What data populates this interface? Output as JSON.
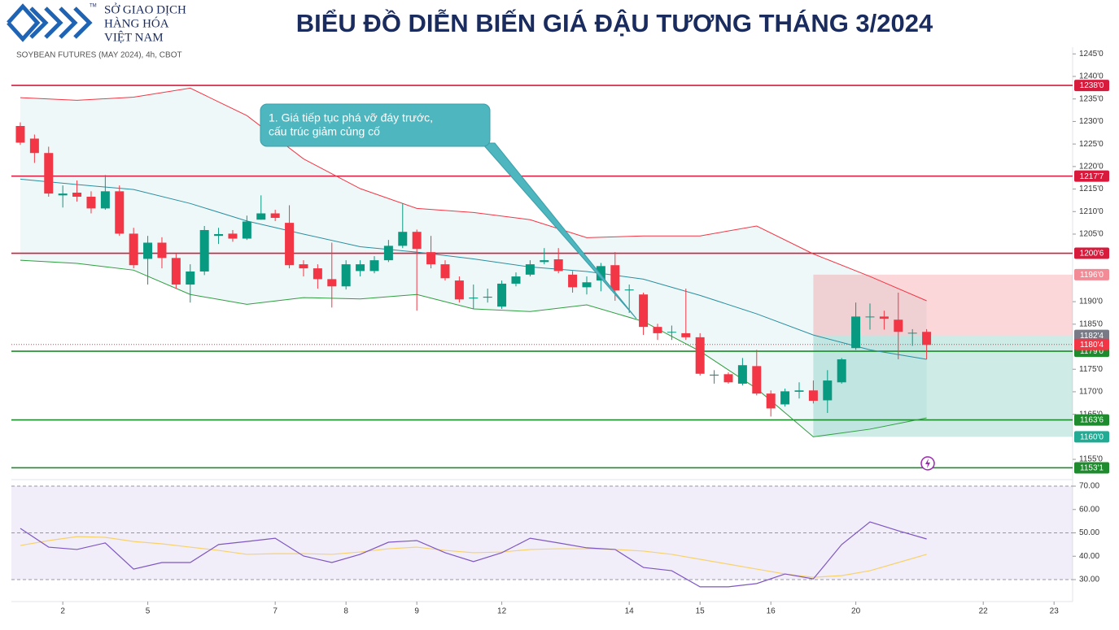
{
  "header": {
    "logo_lines": [
      "SỞ GIAO DỊCH",
      "HÀNG HÓA",
      "VIỆT NAM"
    ],
    "trademark": "TM",
    "title": "BIỂU ĐỒ DIỄN BIẾN GIÁ ĐẬU TƯƠNG THÁNG 3/2024"
  },
  "chart_data": [
    {
      "type": "candlestick",
      "title": "SOYBEAN FUTURES (MAY 2024), 4h, CBOT",
      "x": [
        0,
        1,
        2,
        3,
        4,
        5,
        6,
        7,
        8,
        9,
        10,
        11,
        12,
        13,
        14,
        15,
        16,
        17,
        18,
        19,
        20,
        21,
        22,
        23,
        24,
        25,
        26,
        27,
        28,
        29,
        30,
        31,
        32,
        33,
        34,
        35,
        36,
        37,
        38,
        39,
        40,
        41,
        42,
        43,
        44,
        45,
        46,
        47,
        48,
        49,
        50,
        51,
        52,
        53,
        54,
        55,
        56,
        57,
        58,
        59,
        60,
        61,
        62,
        63,
        64
      ],
      "open": [
        1229,
        1226.2,
        1223,
        1213.6,
        1214.2,
        1213.3,
        1210.7,
        1214.5,
        1205.1,
        1199.5,
        1203.1,
        1199.7,
        1193.8,
        1196.7,
        1204.6,
        1205.1,
        1204,
        1208.2,
        1209.6,
        1207.5,
        1198.3,
        1197.4,
        1195,
        1193.4,
        1196.8,
        1196.8,
        1199.2,
        1202.4,
        1205.5,
        1201,
        1198.3,
        1194.7,
        1190.7,
        1190.9,
        1188.9,
        1194,
        1196,
        1198.8,
        1199.4,
        1196,
        1193.2,
        1194.7,
        1198.1,
        1192.5,
        1191.6,
        1184.4,
        1183.3,
        1183,
        1182.1,
        1173.6,
        1173.9,
        1171.8,
        1175.7,
        1169.6,
        1167.2,
        1170,
        1170.3,
        1168.1,
        1172.1,
        1179.7,
        1186.6,
        1186.7,
        1186,
        1183,
        1183.3
      ],
      "high": [
        1229.8,
        1227.1,
        1224.4,
        1215.8,
        1216.9,
        1214.5,
        1218.1,
        1215.8,
        1206.4,
        1204.6,
        1204.3,
        1200.6,
        1198.3,
        1206.8,
        1206.4,
        1205.9,
        1209.1,
        1213.6,
        1210.4,
        1211.4,
        1199.2,
        1198.3,
        1203.1,
        1199.2,
        1199.2,
        1200.1,
        1203.7,
        1211.8,
        1206,
        1204.6,
        1199.2,
        1195.6,
        1193.8,
        1192.9,
        1194.7,
        1196.5,
        1199.2,
        1201.9,
        1201.9,
        1196.8,
        1195.6,
        1198.6,
        1201,
        1193.8,
        1192,
        1185.1,
        1184.7,
        1192.9,
        1183,
        1174.8,
        1174.3,
        1177.5,
        1179.3,
        1170.3,
        1170.7,
        1172.1,
        1172.5,
        1174.8,
        1177.5,
        1189.8,
        1189.6,
        1188,
        1192,
        1183.9,
        1183.9
      ],
      "low": [
        1224.8,
        1220.8,
        1213.3,
        1210.9,
        1212.2,
        1209.6,
        1210.4,
        1204.6,
        1197.4,
        1193.8,
        1197.4,
        1192.9,
        1189.8,
        1195.9,
        1202.8,
        1203.3,
        1203.7,
        1208.2,
        1207.9,
        1197.4,
        1195.6,
        1192.9,
        1188.7,
        1192.7,
        1195.6,
        1196.3,
        1198.8,
        1201.9,
        1188,
        1197.4,
        1194.7,
        1189.8,
        1188.4,
        1189.8,
        1188.4,
        1193.4,
        1195.6,
        1198.3,
        1196.3,
        1192,
        1191.6,
        1192.3,
        1190.2,
        1187.5,
        1182.6,
        1181.5,
        1181.5,
        1181.5,
        1173.6,
        1171.8,
        1171.8,
        1171.4,
        1169.2,
        1164.5,
        1166.7,
        1168.5,
        1167.4,
        1165.3,
        1171.8,
        1179.3,
        1183.8,
        1183.8,
        1177.2,
        1180.2,
        1177.2
      ],
      "close": [
        1225.3,
        1223,
        1214,
        1214,
        1213.3,
        1210.7,
        1214.5,
        1205.1,
        1198.1,
        1203.1,
        1199.7,
        1193.8,
        1196.7,
        1205.9,
        1205,
        1204,
        1207.8,
        1209.6,
        1208.6,
        1198.1,
        1197.4,
        1195,
        1193.4,
        1198.3,
        1198.3,
        1199.2,
        1202.4,
        1205.5,
        1201.7,
        1198.3,
        1195.2,
        1190.5,
        1190.9,
        1191.1,
        1194,
        1195.6,
        1198.3,
        1199.2,
        1196.8,
        1193.2,
        1194.3,
        1197.9,
        1192.5,
        1192.7,
        1184.4,
        1183,
        1183.3,
        1182.1,
        1174,
        1173.8,
        1172.1,
        1175.9,
        1169.6,
        1166.3,
        1170.1,
        1170.3,
        1168,
        1172.5,
        1177.2,
        1186.7,
        1186.7,
        1186.2,
        1183.3,
        1183.1,
        1180.4
      ],
      "up_color": "#089981",
      "down_color": "#f23645",
      "xlim": [
        -0.63,
        74.31
      ],
      "xticks": [
        {
          "value": 3,
          "label": "2"
        },
        {
          "value": 9,
          "label": "5"
        },
        {
          "value": 18,
          "label": "7"
        },
        {
          "value": 23,
          "label": "8"
        },
        {
          "value": 28,
          "label": "9"
        },
        {
          "value": 34,
          "label": "12"
        },
        {
          "value": 43,
          "label": "14"
        },
        {
          "value": 48,
          "label": "15"
        },
        {
          "value": 53,
          "label": "16"
        },
        {
          "value": 59,
          "label": "20"
        },
        {
          "value": 68,
          "label": "22"
        },
        {
          "value": 73,
          "label": "23"
        }
      ],
      "ylim": [
        1150.5,
        1246.5
      ],
      "yticks": [
        {
          "value": 1245,
          "label": "1245'0"
        },
        {
          "value": 1240,
          "label": "1240'0"
        },
        {
          "value": 1235,
          "label": "1235'0"
        },
        {
          "value": 1230,
          "label": "1230'0"
        },
        {
          "value": 1225,
          "label": "1225'0"
        },
        {
          "value": 1220,
          "label": "1220'0"
        },
        {
          "value": 1215,
          "label": "1215'0"
        },
        {
          "value": 1210,
          "label": "1210'0"
        },
        {
          "value": 1205,
          "label": "1205'0"
        },
        {
          "value": 1190,
          "label": "1190'0"
        },
        {
          "value": 1185,
          "label": "1185'0"
        },
        {
          "value": 1175,
          "label": "1175'0"
        },
        {
          "value": 1170,
          "label": "1170'0"
        },
        {
          "value": 1165,
          "label": "1165'0"
        },
        {
          "value": 1155,
          "label": "1155'0"
        }
      ],
      "band_x": [
        0,
        4,
        8,
        12,
        16,
        20,
        24,
        28,
        32,
        36,
        40,
        44,
        48,
        52,
        56,
        60,
        64
      ],
      "bands": [
        {
          "color": "#f23645",
          "values": [
            1235.3,
            1234.7,
            1235.4,
            1237.4,
            1231.3,
            1221.7,
            1215.1,
            1210.7,
            1209.8,
            1208.2,
            1204.2,
            1204.6,
            1204.6,
            1206.8,
            1200.6,
            1195.6,
            1190.2
          ]
        },
        {
          "color": "#2a8ea0",
          "values": [
            1217.2,
            1216,
            1214.9,
            1211.8,
            1207.9,
            1205,
            1202.2,
            1201,
            1199.5,
            1197.7,
            1196.7,
            1195,
            1191.4,
            1187.3,
            1182.6,
            1179.3,
            1177.2
          ]
        },
        {
          "color": "#2e9e3e",
          "values": [
            1199.2,
            1198.5,
            1197,
            1191.6,
            1189.4,
            1190.9,
            1190.6,
            1191.6,
            1188.4,
            1187.8,
            1189.3,
            1185.6,
            1179,
            1170.7,
            1160,
            1161.7,
            1164.2
          ]
        }
      ],
      "levels": [
        {
          "value": 1238,
          "label": "1238'0",
          "color": "#d81b3c"
        },
        {
          "value": 1217.875,
          "label": "1217'7",
          "color": "#d81b3c"
        },
        {
          "value": 1200.75,
          "label": "1200'6",
          "color": "#d81b3c"
        },
        {
          "value": 1179,
          "label": "1179'0",
          "color": "#1e8c2e"
        },
        {
          "value": 1163.75,
          "label": "1163'6",
          "color": "#1e8c2e"
        },
        {
          "value": 1153.125,
          "label": "1153'1",
          "color": "#1e8c2e"
        }
      ],
      "position": {
        "start": 56,
        "stop": {
          "value": 1196,
          "label": "1196'0"
        },
        "entry": {
          "value": 1182.5,
          "label": "1182'4"
        },
        "target": {
          "value": 1160,
          "label": "1160'0"
        }
      },
      "last_price": {
        "value": 1180.5,
        "label": "1180'4"
      },
      "annotation": [
        "1. Giá tiếp tục phá vỡ đáy trước,",
        "cấu trúc giảm củng cố"
      ]
    },
    {
      "type": "line",
      "x": [
        0,
        2,
        4,
        6,
        8,
        10,
        12,
        14,
        16,
        18,
        20,
        22,
        24,
        26,
        28,
        30,
        32,
        34,
        36,
        38,
        40,
        42,
        44,
        46,
        48,
        50,
        52,
        54,
        56,
        58,
        60,
        62,
        64
      ],
      "series": [
        {
          "color": "#7e57c2",
          "values": [
            51.9,
            43.9,
            42.9,
            45.7,
            34.5,
            37.3,
            37.3,
            45,
            46.3,
            47.7,
            40.1,
            37.3,
            40.8,
            46,
            46.7,
            41.5,
            37.7,
            41.5,
            47.7,
            45.7,
            43.6,
            42.9,
            35.2,
            33.8,
            26.9,
            26.9,
            28.3,
            32.4,
            30.3,
            45,
            54.7,
            50.9,
            47.4
          ]
        },
        {
          "color": "#f7d26b",
          "values": [
            44.6,
            46.7,
            48.4,
            48.1,
            46.3,
            45.3,
            43.9,
            42.5,
            40.8,
            41.1,
            41.1,
            40.8,
            41.8,
            43.2,
            43.9,
            42.5,
            41.5,
            41.8,
            42.9,
            43.2,
            43.2,
            42.9,
            42.2,
            40.8,
            38.7,
            36.6,
            34.5,
            32.4,
            31,
            31.7,
            33.8,
            37.3,
            40.8
          ]
        }
      ],
      "xlim": [
        -0.63,
        74.31
      ],
      "ylim": [
        20.6,
        72.8
      ],
      "yticks": [
        {
          "value": 70,
          "label": "70.00"
        },
        {
          "value": 60,
          "label": "60.00"
        },
        {
          "value": 50,
          "label": "50.00"
        },
        {
          "value": 40,
          "label": "40.00"
        },
        {
          "value": 30,
          "label": "30.00"
        }
      ]
    }
  ]
}
